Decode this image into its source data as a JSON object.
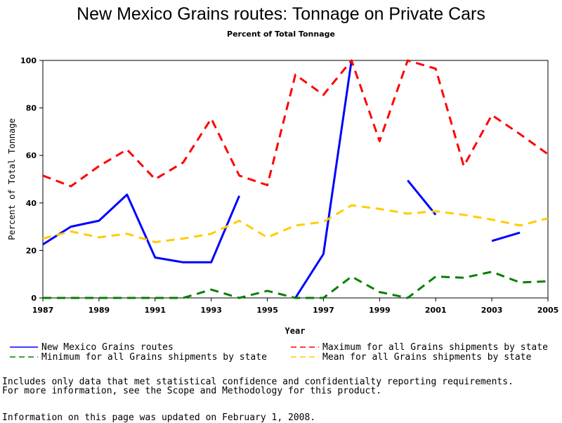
{
  "chart_data": {
    "type": "line",
    "title": "New Mexico Grains routes: Tonnage on Private Cars",
    "subtitle": "Percent of Total Tonnage",
    "xlabel": "Year",
    "ylabel": "Percent of Total Tonnage",
    "xlim": [
      1987,
      2005
    ],
    "ylim": [
      0,
      100
    ],
    "x_ticks": [
      1987,
      1989,
      1991,
      1993,
      1995,
      1997,
      1999,
      2001,
      2003,
      2005
    ],
    "y_ticks": [
      0,
      20,
      40,
      60,
      80,
      100
    ],
    "legend_position": "bottom",
    "series": [
      {
        "name": "New Mexico Grains routes",
        "color": "#0000ff",
        "style": "solid",
        "points": [
          [
            1987,
            22.5
          ],
          [
            1988,
            30
          ],
          [
            1989,
            32.5
          ],
          [
            1990,
            43.5
          ],
          [
            1991,
            17
          ],
          [
            1992,
            15
          ],
          [
            1993,
            15
          ],
          [
            1994,
            43
          ],
          [
            null,
            null
          ],
          [
            1996,
            0
          ],
          [
            1997,
            18.5
          ],
          [
            1998,
            100
          ],
          [
            null,
            null
          ],
          [
            2000,
            49.5
          ],
          [
            2001,
            35
          ],
          [
            null,
            null
          ],
          [
            2003,
            24
          ],
          [
            2004,
            27.5
          ]
        ]
      },
      {
        "name": "Maximum for all Grains shipments by state",
        "color": "#ff0000",
        "style": "dashed",
        "points": [
          [
            1987,
            51.5
          ],
          [
            1988,
            47
          ],
          [
            1989,
            55.5
          ],
          [
            1990,
            62.5
          ],
          [
            1991,
            50
          ],
          [
            1992,
            57
          ],
          [
            1993,
            75.5
          ],
          [
            1994,
            51.5
          ],
          [
            1995,
            47.5
          ],
          [
            1996,
            94
          ],
          [
            1997,
            85.5
          ],
          [
            1998,
            100
          ],
          [
            1999,
            66
          ],
          [
            2000,
            100
          ],
          [
            2001,
            96.5
          ],
          [
            2002,
            55.5
          ],
          [
            2003,
            77
          ],
          [
            2004,
            69
          ],
          [
            2005,
            60.5
          ]
        ]
      },
      {
        "name": "Minimum for all Grains shipments by state",
        "color": "#008000",
        "style": "dashed",
        "points": [
          [
            1987,
            0
          ],
          [
            1988,
            0
          ],
          [
            1989,
            0
          ],
          [
            1990,
            0
          ],
          [
            1991,
            0
          ],
          [
            1992,
            0
          ],
          [
            1993,
            3.5
          ],
          [
            1994,
            0
          ],
          [
            1995,
            3
          ],
          [
            1996,
            0
          ],
          [
            1997,
            0
          ],
          [
            1998,
            9
          ],
          [
            1999,
            2.5
          ],
          [
            2000,
            0
          ],
          [
            2001,
            9
          ],
          [
            2002,
            8.5
          ],
          [
            2003,
            11
          ],
          [
            2004,
            6.5
          ],
          [
            2005,
            7
          ]
        ]
      },
      {
        "name": "Mean for all Grains shipments by state",
        "color": "#ffcc00",
        "style": "dashed",
        "points": [
          [
            1987,
            25
          ],
          [
            1988,
            28
          ],
          [
            1989,
            25.5
          ],
          [
            1990,
            27
          ],
          [
            1991,
            23.5
          ],
          [
            1992,
            25
          ],
          [
            1993,
            27
          ],
          [
            1994,
            32.5
          ],
          [
            1995,
            25.5
          ],
          [
            1996,
            30.5
          ],
          [
            1997,
            32
          ],
          [
            1998,
            39
          ],
          [
            1999,
            37.5
          ],
          [
            2000,
            35.5
          ],
          [
            2001,
            36.5
          ],
          [
            2002,
            35
          ],
          [
            2003,
            33
          ],
          [
            2004,
            30.5
          ],
          [
            2005,
            33.5
          ]
        ]
      }
    ]
  },
  "notes": {
    "line1": "Includes only data that met statistical confidence and confidentialty reporting requirements.",
    "line2": "For more information, see the Scope and Methodology for this product.",
    "line3": "Information on this page was updated on February 1, 2008."
  }
}
